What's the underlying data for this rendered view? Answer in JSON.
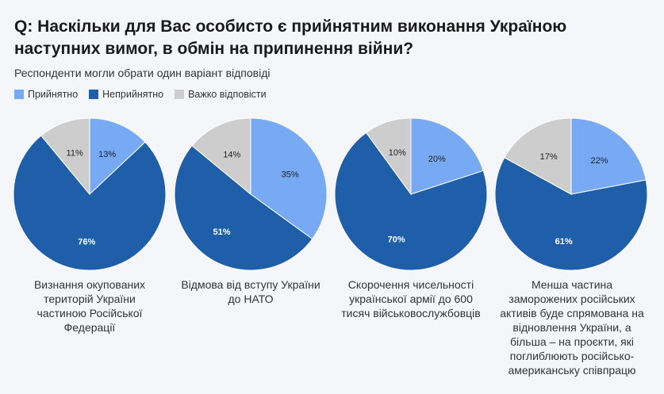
{
  "title": "Q: Наскільки для Вас особисто є прийнятним виконання Україною наступних вимог, в обмін на припинення війни?",
  "subtitle": "Респонденти могли обрати один варіант відповіді",
  "colors": {
    "Прийнятно": "#78aaf3",
    "Неприйнятно": "#1f5ea9",
    "Важко відповісти": "#cdcdcd"
  },
  "chart_data": {
    "type": "pie",
    "legend_position": "top-left",
    "legend": [
      "Прийнятно",
      "Неприйнятно",
      "Важко відповісти"
    ],
    "charts": [
      {
        "caption": "Визнання окупованих територій України частиною Російської Федерації",
        "values": [
          13,
          76,
          11
        ]
      },
      {
        "caption": "Відмова від вступу України до НАТО",
        "values": [
          35,
          51,
          14
        ]
      },
      {
        "caption": "Скорочення чисельності української армії до 600 тисяч військовослужбовців",
        "values": [
          20,
          70,
          10
        ]
      },
      {
        "caption": "Менша частина заморожених російських активів буде спрямована на відновлення України, а більша – на проєкти, які поглиблюють російсько-американську співпрацю",
        "values": [
          22,
          61,
          17
        ]
      }
    ]
  }
}
